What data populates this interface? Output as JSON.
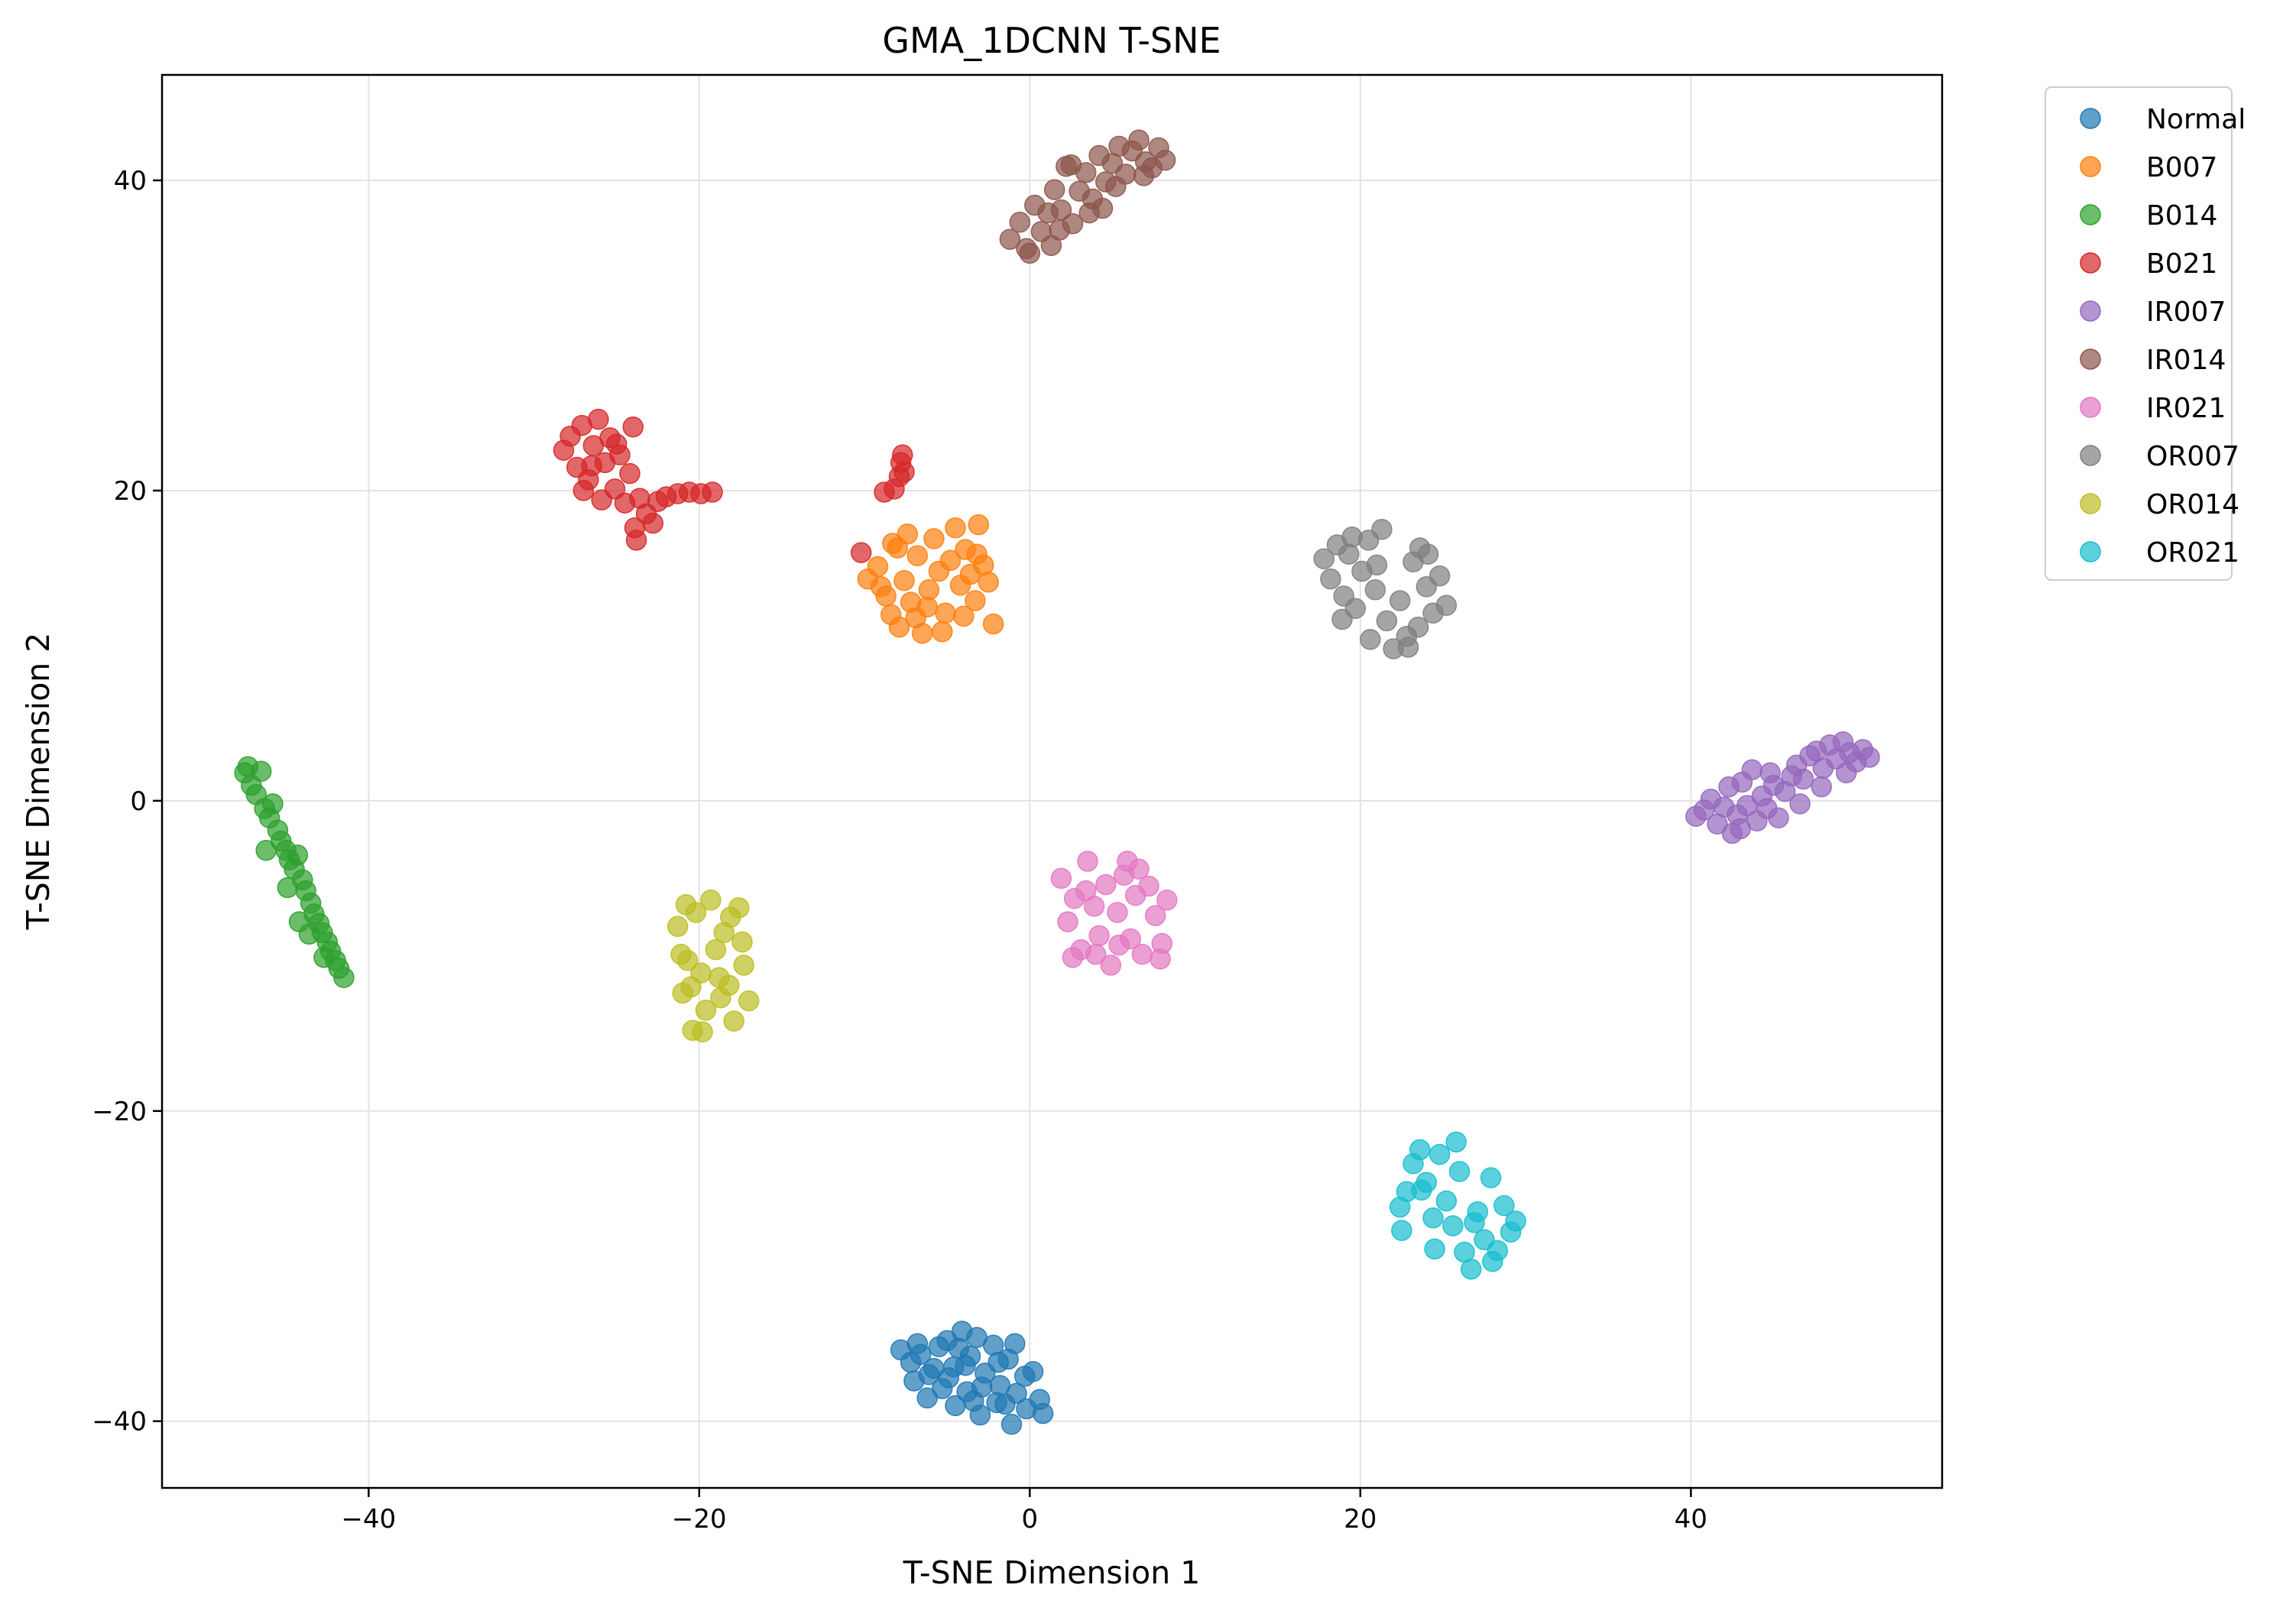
{
  "chart_data": {
    "type": "scatter",
    "title": "GMA_1DCNN T-SNE",
    "xlabel": "T-SNE Dimension 1",
    "ylabel": "T-SNE Dimension 2",
    "xlim": [
      -52.5,
      55.2
    ],
    "ylim": [
      -44.3,
      46.8
    ],
    "xticks": [
      -40,
      -20,
      0,
      20,
      40
    ],
    "yticks": [
      -40,
      -20,
      0,
      20,
      40
    ],
    "xtick_labels": [
      "−40",
      "−20",
      "0",
      "20",
      "40"
    ],
    "ytick_labels": [
      "−40",
      "−20",
      "0",
      "20",
      "40"
    ],
    "grid": true,
    "legend_position": "outside-top-right",
    "marker_opacity": 0.7,
    "series": [
      {
        "name": "Normal",
        "color": "#1f77b4",
        "points": [
          [
            -7.8,
            -35.4
          ],
          [
            -7.2,
            -36.2
          ],
          [
            -6.6,
            -35.7
          ],
          [
            -6.1,
            -37.0
          ],
          [
            -5.5,
            -35.2
          ],
          [
            -5.0,
            -34.8
          ],
          [
            -4.6,
            -36.5
          ],
          [
            -4.1,
            -34.2
          ],
          [
            -3.6,
            -35.8
          ],
          [
            -3.2,
            -34.6
          ],
          [
            -2.7,
            -36.9
          ],
          [
            -2.2,
            -35.1
          ],
          [
            -1.8,
            -37.7
          ],
          [
            -1.3,
            -36.0
          ],
          [
            -0.8,
            -38.2
          ],
          [
            -0.3,
            -37.1
          ],
          [
            0.2,
            -36.8
          ],
          [
            0.6,
            -38.6
          ],
          [
            0.8,
            -39.5
          ],
          [
            -0.2,
            -39.2
          ],
          [
            -1.1,
            -40.2
          ],
          [
            -2.0,
            -38.8
          ],
          [
            -3.0,
            -39.6
          ],
          [
            -3.8,
            -38.1
          ],
          [
            -4.5,
            -39.0
          ],
          [
            -5.3,
            -37.9
          ],
          [
            -6.2,
            -38.5
          ],
          [
            -7.0,
            -37.4
          ],
          [
            -5.8,
            -36.6
          ],
          [
            -4.9,
            -37.2
          ],
          [
            -3.9,
            -36.4
          ],
          [
            -2.9,
            -37.8
          ],
          [
            -1.9,
            -36.2
          ],
          [
            -0.9,
            -35.0
          ],
          [
            -6.8,
            -35.0
          ],
          [
            -3.4,
            -38.7
          ],
          [
            -1.5,
            -38.9
          ],
          [
            -4.3,
            -35.3
          ]
        ]
      },
      {
        "name": "B007",
        "color": "#ff7f0e",
        "points": [
          [
            -9.8,
            14.3
          ],
          [
            -9.2,
            15.1
          ],
          [
            -8.7,
            13.2
          ],
          [
            -8.3,
            16.6
          ],
          [
            -7.9,
            11.2
          ],
          [
            -7.6,
            14.2
          ],
          [
            -7.2,
            12.8
          ],
          [
            -6.8,
            15.8
          ],
          [
            -6.5,
            10.8
          ],
          [
            -6.1,
            13.6
          ],
          [
            -5.8,
            16.9
          ],
          [
            -5.5,
            14.8
          ],
          [
            -5.1,
            12.1
          ],
          [
            -4.8,
            15.5
          ],
          [
            -4.5,
            17.6
          ],
          [
            -4.2,
            13.9
          ],
          [
            -3.9,
            16.2
          ],
          [
            -3.6,
            14.6
          ],
          [
            -3.3,
            12.9
          ],
          [
            -3.1,
            17.8
          ],
          [
            -2.8,
            15.2
          ],
          [
            -2.5,
            14.1
          ],
          [
            -2.2,
            11.4
          ],
          [
            -8.0,
            16.3
          ],
          [
            -7.4,
            17.2
          ],
          [
            -6.2,
            12.5
          ],
          [
            -4.0,
            11.9
          ],
          [
            -3.2,
            15.9
          ],
          [
            -5.3,
            10.9
          ],
          [
            -6.9,
            11.8
          ],
          [
            -8.4,
            12.0
          ],
          [
            -9.0,
            13.8
          ]
        ]
      },
      {
        "name": "B014",
        "color": "#2ca02c",
        "points": [
          [
            -47.5,
            1.8
          ],
          [
            -47.1,
            1.0
          ],
          [
            -46.8,
            0.4
          ],
          [
            -46.5,
            1.9
          ],
          [
            -46.3,
            -0.5
          ],
          [
            -46.0,
            -1.1
          ],
          [
            -45.8,
            -0.2
          ],
          [
            -45.5,
            -1.9
          ],
          [
            -45.3,
            -2.6
          ],
          [
            -45.0,
            -3.2
          ],
          [
            -44.8,
            -3.8
          ],
          [
            -44.5,
            -4.4
          ],
          [
            -44.3,
            -3.5
          ],
          [
            -44.0,
            -5.1
          ],
          [
            -43.8,
            -5.8
          ],
          [
            -43.5,
            -6.6
          ],
          [
            -43.3,
            -7.3
          ],
          [
            -43.0,
            -7.9
          ],
          [
            -42.8,
            -8.5
          ],
          [
            -42.5,
            -9.1
          ],
          [
            -42.3,
            -9.7
          ],
          [
            -42.0,
            -10.3
          ],
          [
            -41.8,
            -10.8
          ],
          [
            -41.5,
            -11.4
          ],
          [
            -46.2,
            -3.2
          ],
          [
            -44.9,
            -5.6
          ],
          [
            -43.6,
            -8.6
          ],
          [
            -47.3,
            2.2
          ],
          [
            -44.2,
            -7.8
          ],
          [
            -42.7,
            -10.1
          ]
        ]
      },
      {
        "name": "B021",
        "color": "#d62728",
        "points": [
          [
            -28.2,
            22.6
          ],
          [
            -27.8,
            23.5
          ],
          [
            -27.4,
            21.5
          ],
          [
            -27.1,
            24.2
          ],
          [
            -26.7,
            20.7
          ],
          [
            -26.4,
            22.9
          ],
          [
            -26.1,
            24.6
          ],
          [
            -25.7,
            21.8
          ],
          [
            -25.4,
            23.4
          ],
          [
            -25.1,
            20.1
          ],
          [
            -24.8,
            22.3
          ],
          [
            -24.5,
            19.2
          ],
          [
            -24.2,
            21.1
          ],
          [
            -23.9,
            17.6
          ],
          [
            -23.6,
            19.5
          ],
          [
            -23.2,
            18.5
          ],
          [
            -22.8,
            17.9
          ],
          [
            -22.5,
            19.3
          ],
          [
            -27.0,
            20.0
          ],
          [
            -25.9,
            19.4
          ],
          [
            -24.0,
            24.1
          ],
          [
            -23.8,
            16.8
          ],
          [
            -22.0,
            19.6
          ],
          [
            -21.3,
            19.8
          ],
          [
            -20.6,
            19.9
          ],
          [
            -19.9,
            19.8
          ],
          [
            -19.2,
            19.9
          ],
          [
            -26.5,
            21.6
          ],
          [
            -25.0,
            23.0
          ],
          [
            -10.2,
            16.0
          ],
          [
            -8.8,
            19.9
          ],
          [
            -8.2,
            20.1
          ],
          [
            -7.9,
            20.9
          ],
          [
            -7.8,
            21.8
          ],
          [
            -7.7,
            22.3
          ],
          [
            -7.6,
            21.2
          ]
        ]
      },
      {
        "name": "IR007",
        "color": "#9467bd",
        "points": [
          [
            40.3,
            -1.0
          ],
          [
            40.8,
            -0.6
          ],
          [
            41.2,
            0.1
          ],
          [
            41.6,
            -1.5
          ],
          [
            42.0,
            -0.4
          ],
          [
            42.3,
            0.9
          ],
          [
            42.5,
            -2.1
          ],
          [
            42.8,
            -0.9
          ],
          [
            43.1,
            1.2
          ],
          [
            43.4,
            -0.3
          ],
          [
            43.7,
            2.0
          ],
          [
            44.0,
            -1.3
          ],
          [
            44.3,
            0.3
          ],
          [
            44.6,
            -0.5
          ],
          [
            45.0,
            1.0
          ],
          [
            45.3,
            -1.1
          ],
          [
            45.7,
            0.6
          ],
          [
            46.1,
            1.6
          ],
          [
            46.4,
            2.3
          ],
          [
            46.8,
            1.4
          ],
          [
            47.2,
            2.9
          ],
          [
            47.6,
            3.2
          ],
          [
            48.0,
            2.1
          ],
          [
            48.4,
            3.6
          ],
          [
            48.8,
            2.7
          ],
          [
            49.2,
            3.8
          ],
          [
            49.6,
            3.1
          ],
          [
            50.0,
            2.5
          ],
          [
            50.4,
            3.3
          ],
          [
            50.8,
            2.8
          ],
          [
            43.0,
            -1.8
          ],
          [
            44.8,
            1.8
          ],
          [
            46.6,
            -0.2
          ],
          [
            47.9,
            0.9
          ],
          [
            49.4,
            1.8
          ]
        ]
      },
      {
        "name": "IR014",
        "color": "#8c564b",
        "points": [
          [
            -1.2,
            36.2
          ],
          [
            -0.6,
            37.3
          ],
          [
            -0.2,
            35.6
          ],
          [
            0.3,
            38.4
          ],
          [
            0.7,
            36.7
          ],
          [
            1.1,
            37.9
          ],
          [
            1.5,
            39.4
          ],
          [
            1.9,
            38.1
          ],
          [
            2.2,
            40.9
          ],
          [
            2.6,
            37.2
          ],
          [
            3.0,
            39.3
          ],
          [
            3.4,
            40.5
          ],
          [
            3.8,
            38.8
          ],
          [
            4.2,
            41.6
          ],
          [
            4.6,
            39.9
          ],
          [
            5.0,
            41.1
          ],
          [
            5.4,
            42.2
          ],
          [
            5.8,
            40.4
          ],
          [
            6.2,
            41.9
          ],
          [
            6.6,
            42.6
          ],
          [
            7.0,
            41.2
          ],
          [
            7.4,
            40.8
          ],
          [
            7.8,
            42.1
          ],
          [
            8.2,
            41.3
          ],
          [
            0.0,
            35.3
          ],
          [
            1.8,
            36.8
          ],
          [
            2.5,
            41.0
          ],
          [
            3.6,
            37.9
          ],
          [
            5.2,
            39.6
          ],
          [
            6.9,
            40.3
          ],
          [
            1.3,
            35.8
          ],
          [
            4.4,
            38.2
          ]
        ]
      },
      {
        "name": "IR021",
        "color": "#e377c2",
        "points": [
          [
            1.9,
            -5.0
          ],
          [
            2.3,
            -7.8
          ],
          [
            2.7,
            -6.3
          ],
          [
            3.1,
            -9.6
          ],
          [
            3.5,
            -3.9
          ],
          [
            3.9,
            -6.8
          ],
          [
            4.2,
            -8.7
          ],
          [
            4.6,
            -5.4
          ],
          [
            4.9,
            -10.6
          ],
          [
            5.3,
            -7.2
          ],
          [
            5.7,
            -4.8
          ],
          [
            6.1,
            -8.9
          ],
          [
            6.4,
            -6.1
          ],
          [
            6.8,
            -9.9
          ],
          [
            7.2,
            -5.5
          ],
          [
            7.6,
            -7.4
          ],
          [
            8.0,
            -9.2
          ],
          [
            8.3,
            -6.4
          ],
          [
            2.6,
            -10.1
          ],
          [
            5.9,
            -3.9
          ],
          [
            7.9,
            -10.2
          ],
          [
            3.4,
            -5.8
          ],
          [
            6.6,
            -4.4
          ],
          [
            4.0,
            -9.9
          ],
          [
            5.4,
            -9.3
          ]
        ]
      },
      {
        "name": "OR007",
        "color": "#7f7f7f",
        "points": [
          [
            17.8,
            15.6
          ],
          [
            18.2,
            14.3
          ],
          [
            18.6,
            16.5
          ],
          [
            19.0,
            13.2
          ],
          [
            19.3,
            15.9
          ],
          [
            19.7,
            12.4
          ],
          [
            20.1,
            14.8
          ],
          [
            20.5,
            16.8
          ],
          [
            20.9,
            13.6
          ],
          [
            21.3,
            17.5
          ],
          [
            21.6,
            11.6
          ],
          [
            22.0,
            9.8
          ],
          [
            22.4,
            12.9
          ],
          [
            22.8,
            10.6
          ],
          [
            23.2,
            15.4
          ],
          [
            23.6,
            16.3
          ],
          [
            24.0,
            13.8
          ],
          [
            24.4,
            12.1
          ],
          [
            24.8,
            14.5
          ],
          [
            25.2,
            12.6
          ],
          [
            18.9,
            11.7
          ],
          [
            20.6,
            10.4
          ],
          [
            22.9,
            9.9
          ],
          [
            21.0,
            15.2
          ],
          [
            23.5,
            11.2
          ],
          [
            19.5,
            17.0
          ],
          [
            24.1,
            15.9
          ]
        ]
      },
      {
        "name": "OR014",
        "color": "#bcbd22",
        "points": [
          [
            -21.3,
            -8.1
          ],
          [
            -21.0,
            -12.4
          ],
          [
            -20.7,
            -10.3
          ],
          [
            -20.4,
            -14.8
          ],
          [
            -20.2,
            -7.2
          ],
          [
            -19.9,
            -11.1
          ],
          [
            -19.6,
            -13.5
          ],
          [
            -19.3,
            -6.4
          ],
          [
            -19.0,
            -9.6
          ],
          [
            -18.7,
            -12.7
          ],
          [
            -18.5,
            -8.5
          ],
          [
            -18.2,
            -11.9
          ],
          [
            -17.9,
            -14.2
          ],
          [
            -17.6,
            -6.9
          ],
          [
            -17.3,
            -10.6
          ],
          [
            -17.0,
            -12.9
          ],
          [
            -20.8,
            -6.7
          ],
          [
            -18.1,
            -7.5
          ],
          [
            -19.8,
            -14.9
          ],
          [
            -17.4,
            -9.1
          ],
          [
            -20.5,
            -12.0
          ],
          [
            -18.8,
            -11.4
          ],
          [
            -21.1,
            -9.9
          ]
        ]
      },
      {
        "name": "OR021",
        "color": "#17becf",
        "points": [
          [
            22.4,
            -26.2
          ],
          [
            22.8,
            -25.2
          ],
          [
            23.2,
            -23.4
          ],
          [
            23.6,
            -22.5
          ],
          [
            24.0,
            -24.6
          ],
          [
            24.4,
            -26.9
          ],
          [
            24.8,
            -22.8
          ],
          [
            25.2,
            -25.8
          ],
          [
            25.6,
            -27.4
          ],
          [
            26.0,
            -23.9
          ],
          [
            26.3,
            -29.1
          ],
          [
            26.7,
            -30.2
          ],
          [
            27.1,
            -26.5
          ],
          [
            27.5,
            -28.3
          ],
          [
            27.9,
            -24.3
          ],
          [
            28.3,
            -29.0
          ],
          [
            28.7,
            -26.1
          ],
          [
            29.1,
            -27.8
          ],
          [
            29.4,
            -27.1
          ],
          [
            22.5,
            -27.7
          ],
          [
            24.5,
            -28.9
          ],
          [
            25.8,
            -22.0
          ],
          [
            26.9,
            -27.2
          ],
          [
            28.0,
            -29.7
          ],
          [
            23.7,
            -25.1
          ]
        ]
      }
    ]
  }
}
